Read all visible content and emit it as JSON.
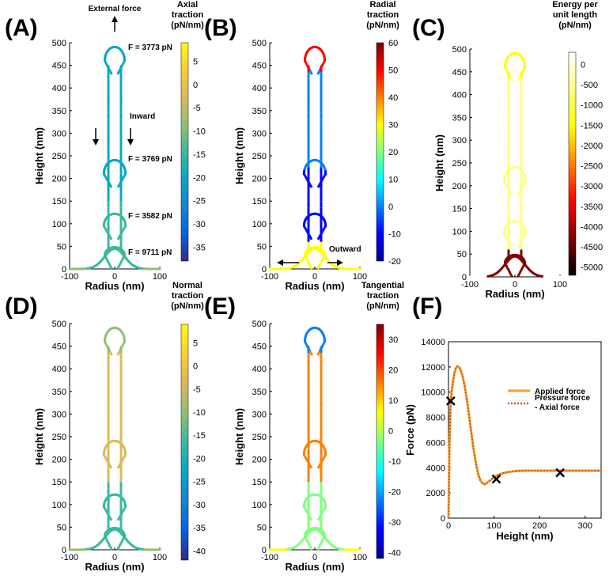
{
  "chart_data": [
    {
      "panel": "(A)",
      "type": "line",
      "xlabel": "Radius (nm)",
      "ylabel": "Height (nm)",
      "xlim": [
        -100,
        100
      ],
      "ylim": [
        0,
        500
      ],
      "xticks": [
        "-100",
        "0",
        "100"
      ],
      "yticks": [
        "0",
        "50",
        "100",
        "150",
        "200",
        "250",
        "300",
        "350",
        "400",
        "450",
        "500"
      ],
      "colorbar": {
        "title": [
          "Axial",
          "traction",
          "(pN/nm)"
        ],
        "range": [
          -38,
          9
        ],
        "map": "parula",
        "ticks": [
          "5",
          "0",
          "-5",
          "-10",
          "-15",
          "-20",
          "-25",
          "-30",
          "-35"
        ]
      },
      "annotations": [
        "External force",
        "F = 3773 pN",
        "Inward",
        "F = 3769 pN",
        "F = 3582 pN",
        "F = 9711 pN"
      ]
    },
    {
      "panel": "(B)",
      "type": "line",
      "xlabel": "Radius (nm)",
      "ylabel": "Height (nm)",
      "xlim": [
        -100,
        100
      ],
      "ylim": [
        0,
        500
      ],
      "xticks": [
        "-100",
        "0",
        "100"
      ],
      "yticks": [
        "0",
        "50",
        "100",
        "150",
        "200",
        "250",
        "300",
        "350",
        "400",
        "450",
        "500"
      ],
      "colorbar": {
        "title": [
          "Radial",
          "traction",
          "(pN/nm)"
        ],
        "range": [
          -20,
          60
        ],
        "map": "jet",
        "ticks": [
          "60",
          "50",
          "40",
          "30",
          "20",
          "10",
          "0",
          "-10",
          "-20"
        ]
      },
      "annotations": [
        "Outward"
      ]
    },
    {
      "panel": "(C)",
      "type": "line",
      "xlabel": "Radius (nm)",
      "ylabel": "Height (nm)",
      "xlim": [
        -100,
        100
      ],
      "ylim": [
        0,
        500
      ],
      "xticks": [
        "-100",
        "0",
        "100"
      ],
      "yticks": [
        "0",
        "50",
        "100",
        "150",
        "200",
        "250",
        "300",
        "350",
        "400",
        "450",
        "500"
      ],
      "colorbar": {
        "title": [
          "Energy per",
          "unit length",
          "(pN/nm)"
        ],
        "range": [
          -5200,
          300
        ],
        "map": "hot",
        "ticks": [
          "0",
          "-500",
          "-1000",
          "-1500",
          "-2000",
          "-2500",
          "-3000",
          "-3500",
          "-4000",
          "-4500",
          "-5000"
        ]
      },
      "annotations": []
    },
    {
      "panel": "(D)",
      "type": "line",
      "xlabel": "Radius (nm)",
      "ylabel": "Height (nm)",
      "xlim": [
        -100,
        100
      ],
      "ylim": [
        0,
        500
      ],
      "xticks": [
        "-100",
        "0",
        "100"
      ],
      "yticks": [
        "0",
        "50",
        "100",
        "150",
        "200",
        "250",
        "300",
        "350",
        "400",
        "450",
        "500"
      ],
      "colorbar": {
        "title": [
          "Normal",
          "traction",
          "(pN/nm)"
        ],
        "range": [
          -42,
          9
        ],
        "map": "parula",
        "ticks": [
          "5",
          "0",
          "-5",
          "-10",
          "-15",
          "-20",
          "-25",
          "-30",
          "-35",
          "-40"
        ]
      },
      "annotations": []
    },
    {
      "panel": "(E)",
      "type": "line",
      "xlabel": "Radius (nm)",
      "ylabel": "Height (nm)",
      "xlim": [
        -100,
        100
      ],
      "ylim": [
        0,
        500
      ],
      "xticks": [
        "-100",
        "0",
        "100"
      ],
      "yticks": [
        "0",
        "50",
        "100",
        "150",
        "200",
        "250",
        "300",
        "350",
        "400",
        "450",
        "500"
      ],
      "colorbar": {
        "title": [
          "Tangential",
          "traction",
          "(pN/nm)"
        ],
        "range": [
          -42,
          35
        ],
        "map": "jet",
        "ticks": [
          "30",
          "20",
          "10",
          "0",
          "-10",
          "-20",
          "-30",
          "-40"
        ]
      },
      "annotations": []
    },
    {
      "panel": "(F)",
      "type": "line",
      "xlabel": "Height (nm)",
      "ylabel": "Force (pN)",
      "xlim": [
        0,
        335
      ],
      "ylim": [
        0,
        14000
      ],
      "xticks": [
        "0",
        "100",
        "200",
        "300"
      ],
      "yticks": [
        "0",
        "2000",
        "4000",
        "6000",
        "8000",
        "10000",
        "12000",
        "14000"
      ],
      "legend": {
        "position": "right",
        "entries": [
          "Applied force",
          "Pressure force",
          "- Axial force"
        ]
      },
      "series": [
        {
          "name": "Applied force",
          "color": "#f2a52a",
          "style": "solid",
          "x": [
            0,
            1,
            2,
            4,
            6,
            8,
            10,
            13,
            16,
            20,
            25,
            30,
            35,
            40,
            45,
            50,
            55,
            60,
            65,
            70,
            75,
            80,
            85,
            90,
            95,
            100,
            110,
            120,
            130,
            140,
            150,
            160,
            170,
            180,
            200,
            220,
            240,
            260,
            280,
            300,
            320,
            335
          ],
          "y": [
            0,
            2500,
            5500,
            8500,
            9600,
            10300,
            10900,
            11500,
            11900,
            12050,
            11900,
            11400,
            10600,
            9500,
            8200,
            6800,
            5500,
            4400,
            3500,
            3000,
            2750,
            2700,
            2800,
            2950,
            3100,
            3250,
            3450,
            3570,
            3650,
            3700,
            3740,
            3760,
            3770,
            3770,
            3768,
            3768,
            3769,
            3770,
            3770,
            3770,
            3770,
            3770
          ]
        },
        {
          "name": "Pressure force - Axial force",
          "color": "#d9531e",
          "style": "dotted",
          "x": [
            0,
            1,
            2,
            4,
            6,
            8,
            10,
            13,
            16,
            20,
            25,
            30,
            35,
            40,
            45,
            50,
            55,
            60,
            65,
            70,
            75,
            80,
            85,
            90,
            95,
            100,
            110,
            120,
            130,
            140,
            150,
            160,
            170,
            180,
            200,
            220,
            240,
            260,
            280,
            300,
            320,
            335
          ],
          "y": [
            0,
            2500,
            5500,
            8500,
            9600,
            10300,
            10900,
            11500,
            11900,
            12050,
            11900,
            11400,
            10600,
            9500,
            8200,
            6800,
            5500,
            4400,
            3500,
            3000,
            2750,
            2700,
            2800,
            2950,
            3100,
            3250,
            3450,
            3570,
            3650,
            3700,
            3740,
            3760,
            3770,
            3770,
            3768,
            3768,
            3769,
            3770,
            3770,
            3770,
            3770,
            3770
          ]
        }
      ],
      "markers": {
        "symbol": "x",
        "x": [
          5,
          105,
          245
        ],
        "y": [
          9300,
          3100,
          3600
        ]
      }
    }
  ]
}
